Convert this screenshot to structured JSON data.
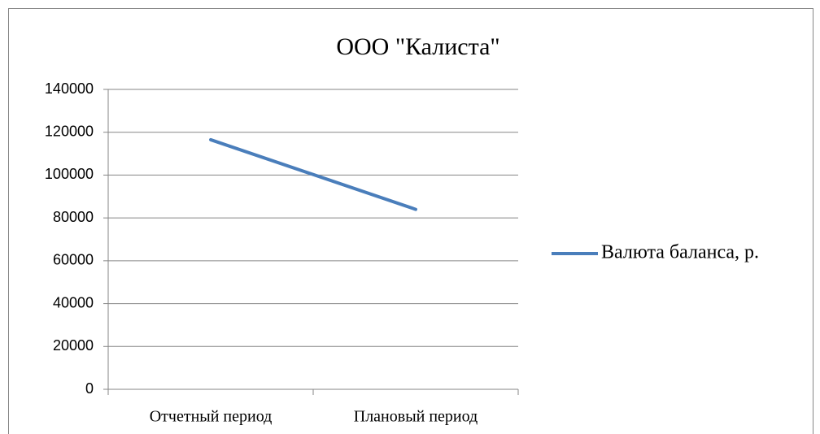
{
  "chart_data": {
    "type": "line",
    "title": "ООО \"Калиста\"",
    "categories": [
      "Отчетный период",
      "Плановый период"
    ],
    "series": [
      {
        "name": "Валюта баланса, р.",
        "color": "#4a7ebb",
        "values": [
          116500,
          84000
        ]
      }
    ],
    "ylim": [
      0,
      140000
    ],
    "yticks": [
      0,
      20000,
      40000,
      60000,
      80000,
      100000,
      120000,
      140000
    ],
    "grid": true,
    "legend": "right"
  }
}
